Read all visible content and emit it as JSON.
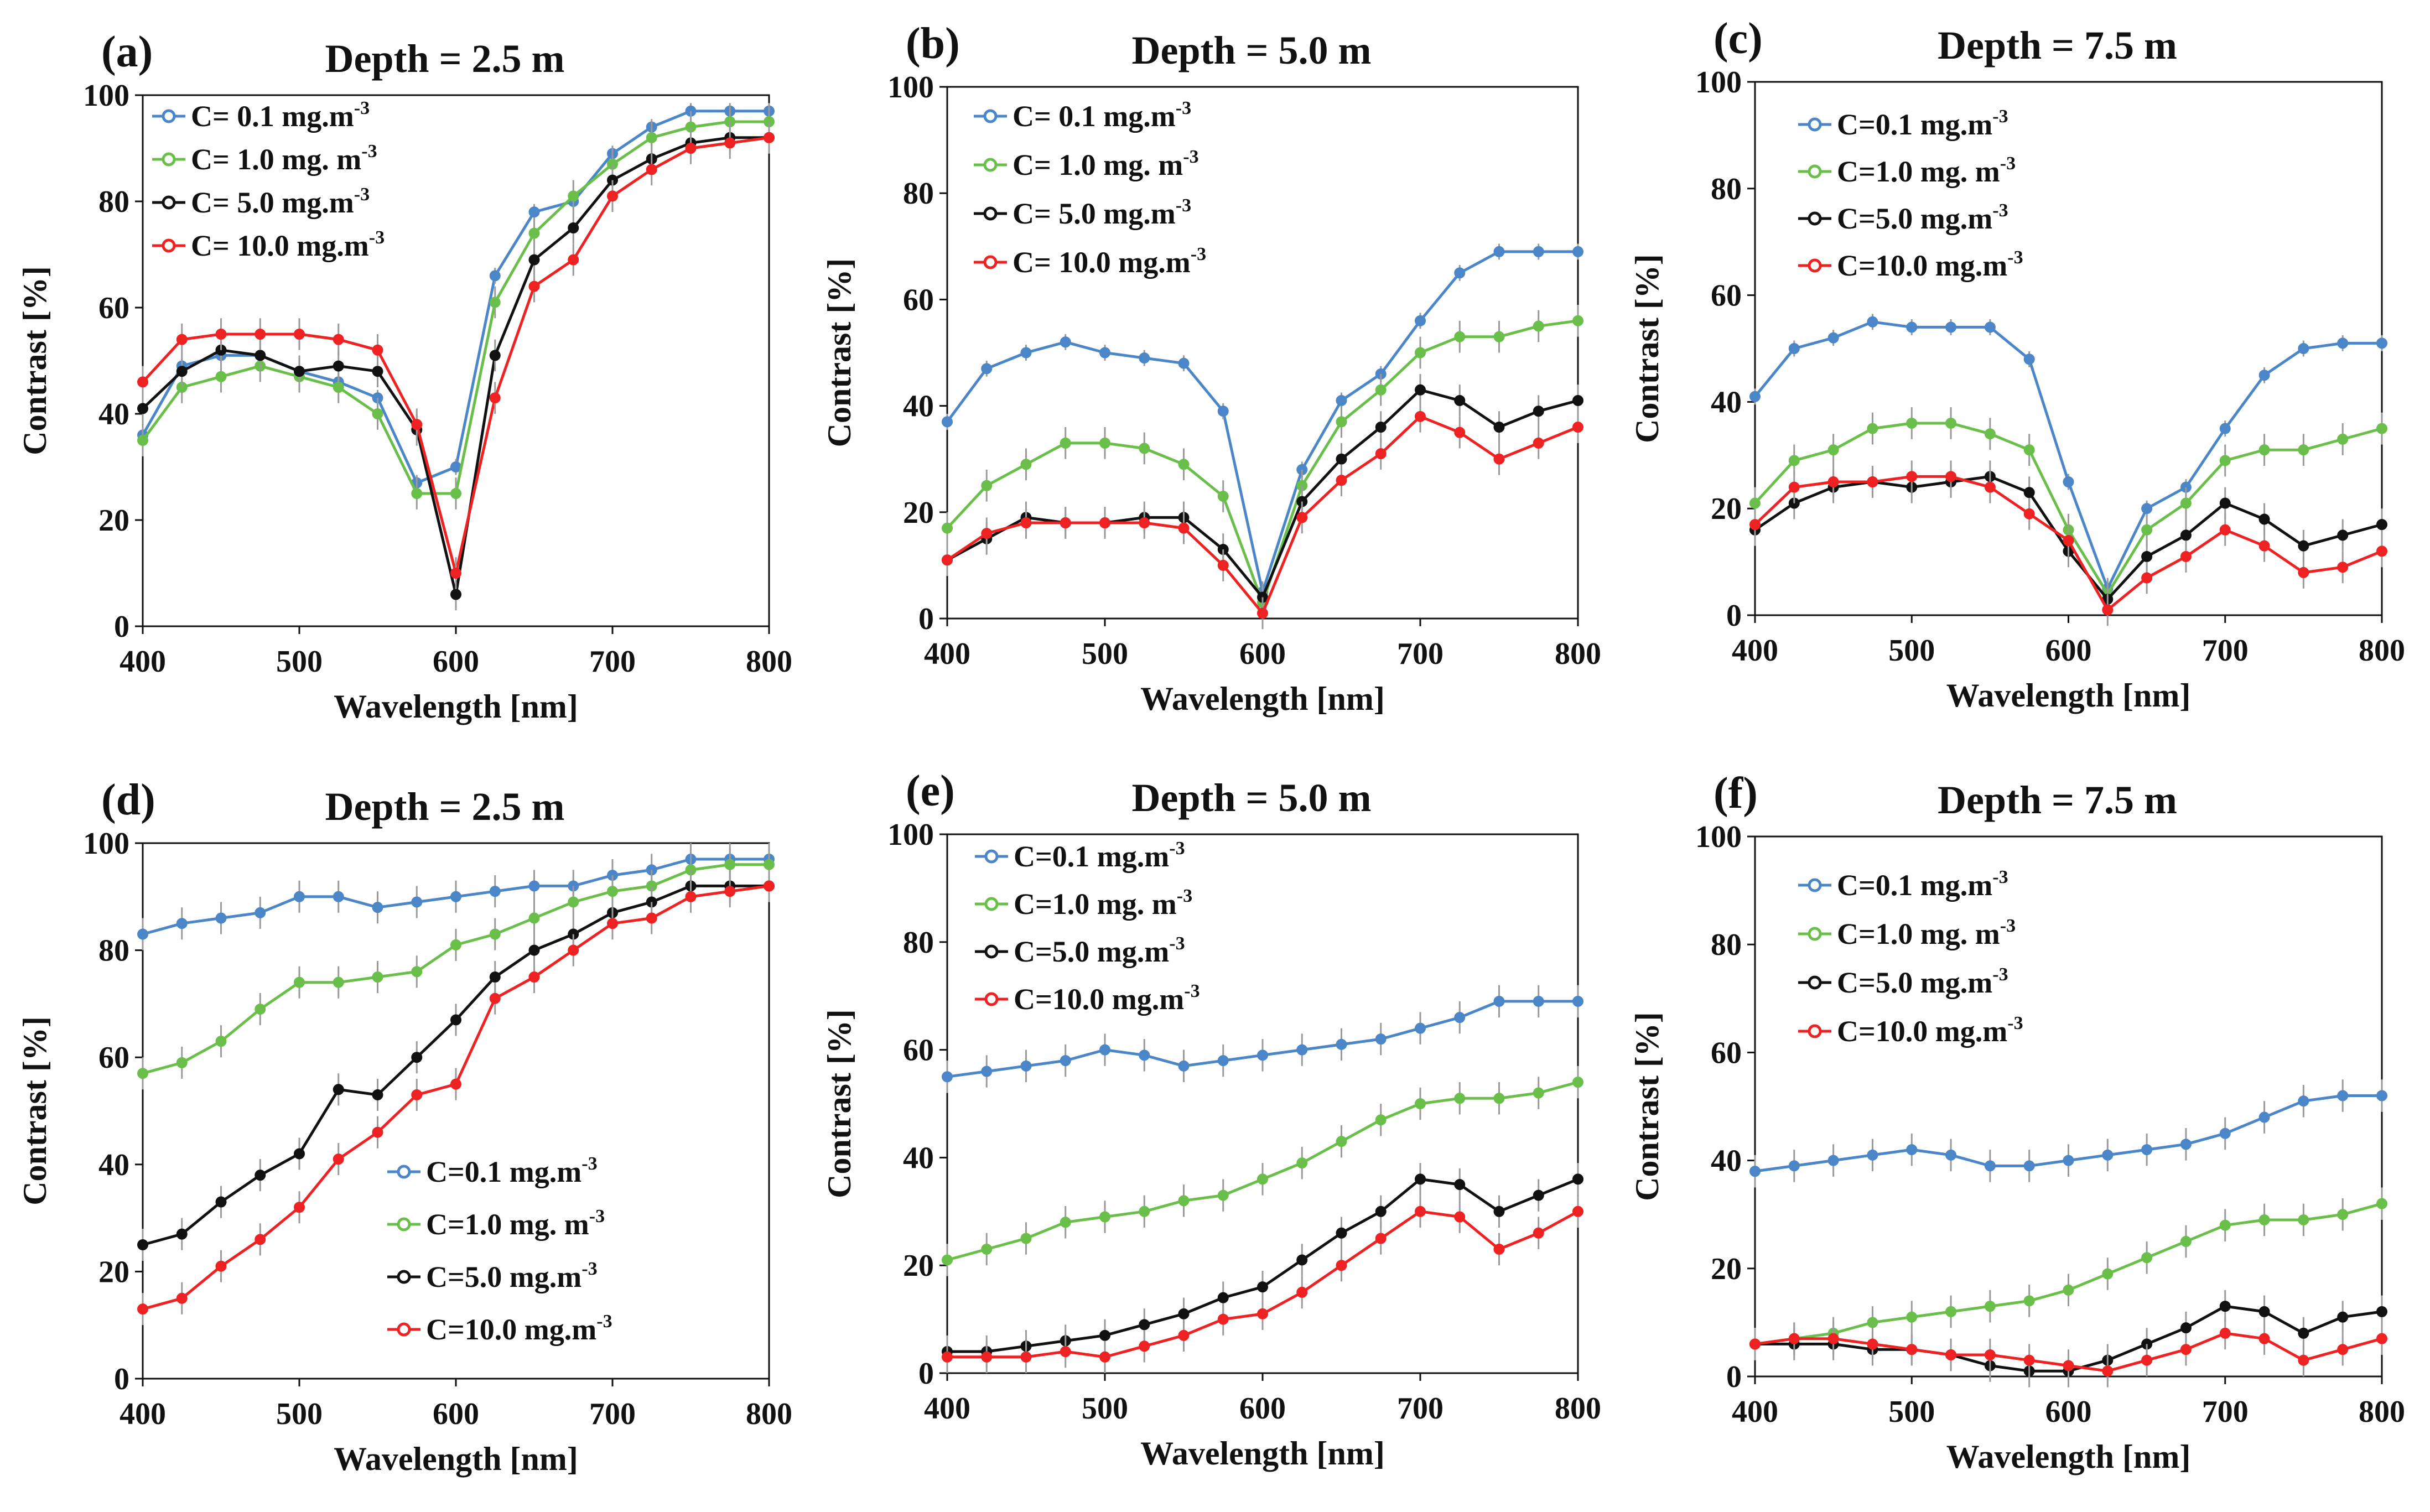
{
  "figure": {
    "xlabel": "Wavelength [nm]",
    "ylabel": "Contrast [%]",
    "series_names": [
      "C= 0.1 mg.m-3",
      "C= 1.0 mg. m-3",
      "C= 5.0 mg.m-3",
      "C= 10.0 mg.m-3"
    ],
    "colors": {
      "blue": "#4a86c8",
      "green": "#6abf4b",
      "black": "#111111",
      "red": "#ee2222"
    }
  },
  "chart_data": [
    {
      "type": "line",
      "panel": "(a)",
      "title": "Depth = 2.5 m",
      "xlabel": "Wavelength [nm]",
      "ylabel": "Contrast [%]",
      "xlim": [
        400,
        800
      ],
      "ylim": [
        0,
        100
      ],
      "xticks": [
        "400",
        "500",
        "600",
        "700",
        "800"
      ],
      "yticks": [
        "0",
        "20",
        "40",
        "60",
        "80",
        "100"
      ],
      "legend_position": "top-left",
      "x": [
        400,
        425,
        450,
        475,
        500,
        525,
        550,
        575,
        600,
        625,
        650,
        675,
        700,
        725,
        750,
        775,
        800
      ],
      "series": [
        {
          "legend_prefix": "C=",
          "legend_value": " 0.1 mg.m",
          "legend_sup": "-3",
          "color": "#4a86c8",
          "values": [
            36,
            49,
            51,
            51,
            48,
            46,
            43,
            27,
            30,
            66,
            78,
            80,
            89,
            94,
            97,
            97,
            97
          ]
        },
        {
          "legend_prefix": "C=",
          "legend_value": " 1.0 mg. m",
          "legend_sup": "-3",
          "color": "#6abf4b",
          "values": [
            35,
            45,
            47,
            49,
            47,
            45,
            40,
            25,
            25,
            61,
            74,
            81,
            87,
            92,
            94,
            95,
            95
          ]
        },
        {
          "legend_prefix": "C=",
          "legend_value": " 5.0 mg.m",
          "legend_sup": "-3",
          "color": "#111111",
          "values": [
            41,
            48,
            52,
            51,
            48,
            49,
            48,
            37,
            6,
            51,
            69,
            75,
            84,
            88,
            91,
            92,
            92
          ]
        },
        {
          "legend_prefix": "C=",
          "legend_value": " 10.0 mg.m",
          "legend_sup": "-3",
          "color": "#ee2222",
          "values": [
            46,
            54,
            55,
            55,
            55,
            54,
            52,
            38,
            10,
            43,
            64,
            69,
            81,
            86,
            90,
            91,
            92
          ]
        }
      ]
    },
    {
      "type": "line",
      "panel": "(b)",
      "title": "Depth = 5.0 m",
      "xlabel": "Wavelength [nm]",
      "ylabel": "Contrast [%]",
      "xlim": [
        400,
        800
      ],
      "ylim": [
        0,
        100
      ],
      "xticks": [
        "400",
        "500",
        "600",
        "700",
        "800"
      ],
      "yticks": [
        "0",
        "20",
        "40",
        "60",
        "80",
        "100"
      ],
      "legend_position": "top-left",
      "x": [
        400,
        425,
        450,
        475,
        500,
        525,
        550,
        575,
        600,
        625,
        650,
        675,
        700,
        725,
        750,
        775,
        800
      ],
      "series": [
        {
          "legend_prefix": "C=",
          "legend_value": " 0.1 mg.m",
          "legend_sup": "-3",
          "color": "#4a86c8",
          "values": [
            37,
            47,
            50,
            52,
            50,
            49,
            48,
            39,
            5,
            28,
            41,
            46,
            56,
            65,
            69,
            69,
            69
          ]
        },
        {
          "legend_prefix": "C=",
          "legend_value": " 1.0 mg. m",
          "legend_sup": "-3",
          "color": "#6abf4b",
          "values": [
            17,
            25,
            29,
            33,
            33,
            32,
            29,
            23,
            3,
            25,
            37,
            43,
            50,
            53,
            53,
            55,
            56
          ]
        },
        {
          "legend_prefix": "C=",
          "legend_value": " 5.0 mg.m",
          "legend_sup": "-3",
          "color": "#111111",
          "values": [
            11,
            15,
            19,
            18,
            18,
            19,
            19,
            13,
            4,
            22,
            30,
            36,
            43,
            41,
            36,
            39,
            41
          ]
        },
        {
          "legend_prefix": "C=",
          "legend_value": " 10.0 mg.m",
          "legend_sup": "-3",
          "color": "#ee2222",
          "values": [
            11,
            16,
            18,
            18,
            18,
            18,
            17,
            10,
            1,
            19,
            26,
            31,
            38,
            35,
            30,
            33,
            36
          ]
        }
      ]
    },
    {
      "type": "line",
      "panel": "(c)",
      "title": "Depth = 7.5 m",
      "xlabel": "Wavelength [nm]",
      "ylabel": "Contrast [%]",
      "xlim": [
        400,
        800
      ],
      "ylim": [
        0,
        100
      ],
      "xticks": [
        "400",
        "500",
        "600",
        "700",
        "800"
      ],
      "yticks": [
        "0",
        "20",
        "40",
        "60",
        "80",
        "100"
      ],
      "legend_position": "top-left",
      "x": [
        400,
        425,
        450,
        475,
        500,
        525,
        550,
        575,
        600,
        625,
        650,
        675,
        700,
        725,
        750,
        775,
        800
      ],
      "series": [
        {
          "legend_prefix": "C=",
          "legend_value": "0.1 mg.m",
          "legend_sup": "-3",
          "color": "#4a86c8",
          "values": [
            41,
            50,
            52,
            55,
            54,
            54,
            54,
            48,
            25,
            5,
            20,
            24,
            35,
            45,
            50,
            51,
            51
          ]
        },
        {
          "legend_prefix": "C=",
          "legend_value": "1.0 mg. m",
          "legend_sup": "-3",
          "color": "#6abf4b",
          "values": [
            21,
            29,
            31,
            35,
            36,
            36,
            34,
            31,
            16,
            4,
            16,
            21,
            29,
            31,
            31,
            33,
            35
          ]
        },
        {
          "legend_prefix": "C=",
          "legend_value": "5.0 mg.m",
          "legend_sup": "-3",
          "color": "#111111",
          "values": [
            16,
            21,
            24,
            25,
            24,
            25,
            26,
            23,
            12,
            3,
            11,
            15,
            21,
            18,
            13,
            15,
            17
          ]
        },
        {
          "legend_prefix": "C=",
          "legend_value": "10.0 mg.m",
          "legend_sup": "-3",
          "color": "#ee2222",
          "values": [
            17,
            24,
            25,
            25,
            26,
            26,
            24,
            19,
            14,
            1,
            7,
            11,
            16,
            13,
            8,
            9,
            12
          ]
        }
      ]
    },
    {
      "type": "line",
      "panel": "(d)",
      "title": "Depth = 2.5 m",
      "xlabel": "Wavelength [nm]",
      "ylabel": "Contrast [%]",
      "xlim": [
        400,
        800
      ],
      "ylim": [
        0,
        100
      ],
      "xticks": [
        "400",
        "500",
        "600",
        "700",
        "800"
      ],
      "yticks": [
        "0",
        "20",
        "40",
        "60",
        "80",
        "100"
      ],
      "legend_position": "bottom-right",
      "x": [
        400,
        425,
        450,
        475,
        500,
        525,
        550,
        575,
        600,
        625,
        650,
        675,
        700,
        725,
        750,
        775,
        800
      ],
      "series": [
        {
          "legend_prefix": "C=",
          "legend_value": "0.1 mg.m",
          "legend_sup": "-3",
          "color": "#4a86c8",
          "values": [
            83,
            85,
            86,
            87,
            90,
            90,
            88,
            89,
            90,
            91,
            92,
            92,
            94,
            95,
            97,
            97,
            97
          ]
        },
        {
          "legend_prefix": "C=",
          "legend_value": "1.0 mg. m",
          "legend_sup": "-3",
          "color": "#6abf4b",
          "values": [
            57,
            59,
            63,
            69,
            74,
            74,
            75,
            76,
            81,
            83,
            86,
            89,
            91,
            92,
            95,
            96,
            96
          ]
        },
        {
          "legend_prefix": "C=",
          "legend_value": "5.0 mg.m",
          "legend_sup": "-3",
          "color": "#111111",
          "values": [
            25,
            27,
            33,
            38,
            42,
            54,
            53,
            60,
            67,
            75,
            80,
            83,
            87,
            89,
            92,
            92,
            92
          ]
        },
        {
          "legend_prefix": "C=",
          "legend_value": "10.0 mg.m",
          "legend_sup": "-3",
          "color": "#ee2222",
          "values": [
            13,
            15,
            21,
            26,
            32,
            41,
            46,
            53,
            55,
            71,
            75,
            80,
            85,
            86,
            90,
            91,
            92
          ]
        }
      ]
    },
    {
      "type": "line",
      "panel": "(e)",
      "title": "Depth = 5.0 m",
      "xlabel": "Wavelength [nm]",
      "ylabel": "Contrast [%]",
      "xlim": [
        400,
        800
      ],
      "ylim": [
        0,
        100
      ],
      "xticks": [
        "400",
        "500",
        "600",
        "700",
        "800"
      ],
      "yticks": [
        "0",
        "20",
        "40",
        "60",
        "80",
        "100"
      ],
      "legend_position": "top-left",
      "x": [
        400,
        425,
        450,
        475,
        500,
        525,
        550,
        575,
        600,
        625,
        650,
        675,
        700,
        725,
        750,
        775,
        800
      ],
      "series": [
        {
          "legend_prefix": "C=",
          "legend_value": "0.1 mg.m",
          "legend_sup": "-3",
          "color": "#4a86c8",
          "values": [
            55,
            56,
            57,
            58,
            60,
            59,
            57,
            58,
            59,
            60,
            61,
            62,
            64,
            66,
            69,
            69,
            69
          ]
        },
        {
          "legend_prefix": "C=",
          "legend_value": "1.0 mg. m",
          "legend_sup": "-3",
          "color": "#6abf4b",
          "values": [
            21,
            23,
            25,
            28,
            29,
            30,
            32,
            33,
            36,
            39,
            43,
            47,
            50,
            51,
            51,
            52,
            54
          ]
        },
        {
          "legend_prefix": "C=",
          "legend_value": "5.0 mg.m",
          "legend_sup": "-3",
          "color": "#111111",
          "values": [
            4,
            4,
            5,
            6,
            7,
            9,
            11,
            14,
            16,
            21,
            26,
            30,
            36,
            35,
            30,
            33,
            36
          ]
        },
        {
          "legend_prefix": "C=",
          "legend_value": "10.0 mg.m",
          "legend_sup": "-3",
          "color": "#ee2222",
          "values": [
            3,
            3,
            3,
            4,
            3,
            5,
            7,
            10,
            11,
            15,
            20,
            25,
            30,
            29,
            23,
            26,
            30
          ]
        }
      ]
    },
    {
      "type": "line",
      "panel": "(f)",
      "title": "Depth = 7.5 m",
      "xlabel": "Wavelength [nm]",
      "ylabel": "Contrast [%]",
      "xlim": [
        400,
        800
      ],
      "ylim": [
        0,
        100
      ],
      "xticks": [
        "400",
        "500",
        "600",
        "700",
        "800"
      ],
      "yticks": [
        "0",
        "20",
        "40",
        "60",
        "80",
        "100"
      ],
      "legend_position": "top-left",
      "x": [
        400,
        425,
        450,
        475,
        500,
        525,
        550,
        575,
        600,
        625,
        650,
        675,
        700,
        725,
        750,
        775,
        800
      ],
      "series": [
        {
          "legend_prefix": "C=",
          "legend_value": "0.1 mg.m",
          "legend_sup": "-3",
          "color": "#4a86c8",
          "values": [
            38,
            39,
            40,
            41,
            42,
            41,
            39,
            39,
            40,
            41,
            42,
            43,
            45,
            48,
            51,
            52,
            52
          ]
        },
        {
          "legend_prefix": "C=",
          "legend_value": "1.0 mg. m",
          "legend_sup": "-3",
          "color": "#6abf4b",
          "values": [
            6,
            7,
            8,
            10,
            11,
            12,
            13,
            14,
            16,
            19,
            22,
            25,
            28,
            29,
            29,
            30,
            32
          ]
        },
        {
          "legend_prefix": "C=",
          "legend_value": "5.0 mg.m",
          "legend_sup": "-3",
          "color": "#111111",
          "values": [
            6,
            6,
            6,
            5,
            5,
            4,
            2,
            1,
            1,
            3,
            6,
            9,
            13,
            12,
            8,
            11,
            12
          ]
        },
        {
          "legend_prefix": "C=",
          "legend_value": "10.0 mg.m",
          "legend_sup": "-3",
          "color": "#ee2222",
          "values": [
            6,
            7,
            7,
            6,
            5,
            4,
            4,
            3,
            2,
            1,
            3,
            5,
            8,
            7,
            3,
            5,
            7
          ]
        }
      ]
    }
  ]
}
